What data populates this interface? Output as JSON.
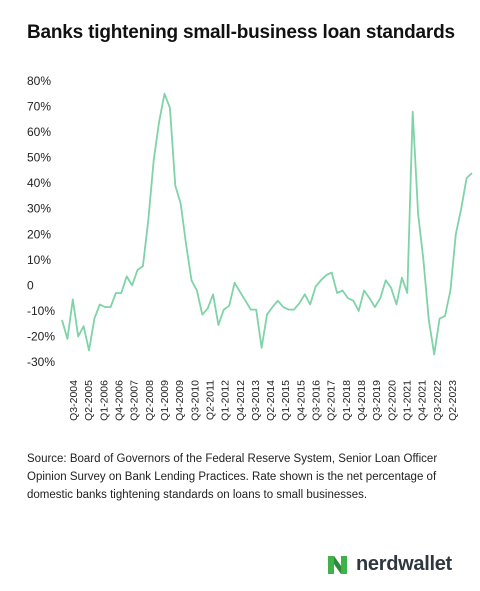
{
  "title": "Banks tightening small-business loan standards",
  "source": "Source: Board of Governors of the Federal Reserve System, Senior Loan Officer Opinion Survey on Bank Lending Practices. Rate shown is the net percentage of domestic banks tightening standards on loans to small businesses.",
  "logo": {
    "text": "nerdwallet"
  },
  "colors": {
    "line": "#7fd3a8",
    "logo_green": "#3fb24a",
    "logo_dark": "#2f3740"
  },
  "chart_data": {
    "type": "line",
    "title": "Banks tightening small-business loan standards",
    "xlabel": "",
    "ylabel": "",
    "ylim": [
      -30,
      80
    ],
    "y_ticks": [
      "80%",
      "70%",
      "60%",
      "50%",
      "40%",
      "30%",
      "20%",
      "10%",
      "0",
      "-10%",
      "-20%",
      "-30%"
    ],
    "y_tick_values": [
      80,
      70,
      60,
      50,
      40,
      30,
      20,
      10,
      0,
      -10,
      -20,
      -30
    ],
    "x_tick_labels": [
      "Q3-2004",
      "Q2-2005",
      "Q1-2006",
      "Q4-2006",
      "Q3-2007",
      "Q2-2008",
      "Q1-2009",
      "Q4-2009",
      "Q3-2010",
      "Q2-2011",
      "Q1-2012",
      "Q4-2012",
      "Q3-2013",
      "Q2-2014",
      "Q1-2015",
      "Q4-2015",
      "Q3-2016",
      "Q2-2017",
      "Q1-2018",
      "Q4-2018",
      "Q3-2019",
      "Q2-2020",
      "Q1-2021",
      "Q4-2021",
      "Q3-2022",
      "Q2-2023"
    ],
    "grid": false,
    "series": [
      {
        "values": [
          -13.5,
          -21,
          -5.5,
          -20,
          -16,
          -25.5,
          -13,
          -7.5,
          -8.5,
          -8.5,
          -3,
          -3,
          3.5,
          0,
          6,
          7.5,
          25.5,
          49,
          64,
          75,
          69.5,
          39,
          32,
          16,
          2,
          -2,
          -11.5,
          -9,
          -3.5,
          -15.5,
          -9.5,
          -8,
          1,
          -2.5,
          -6,
          -9.5,
          -9.5,
          -24.5,
          -11.5,
          -8.5,
          -6,
          -8.5,
          -9.5,
          -9.5,
          -7,
          -3.5,
          -7.5,
          -0.5,
          2,
          4,
          5,
          -3,
          -2,
          -5,
          -6,
          -10,
          -2,
          -5,
          -8.5,
          -5,
          2,
          -1,
          -7.5,
          3,
          -3,
          68,
          28,
          10,
          -13.5,
          -27,
          -13,
          -12,
          -2,
          20,
          30,
          42,
          44
        ]
      }
    ]
  }
}
